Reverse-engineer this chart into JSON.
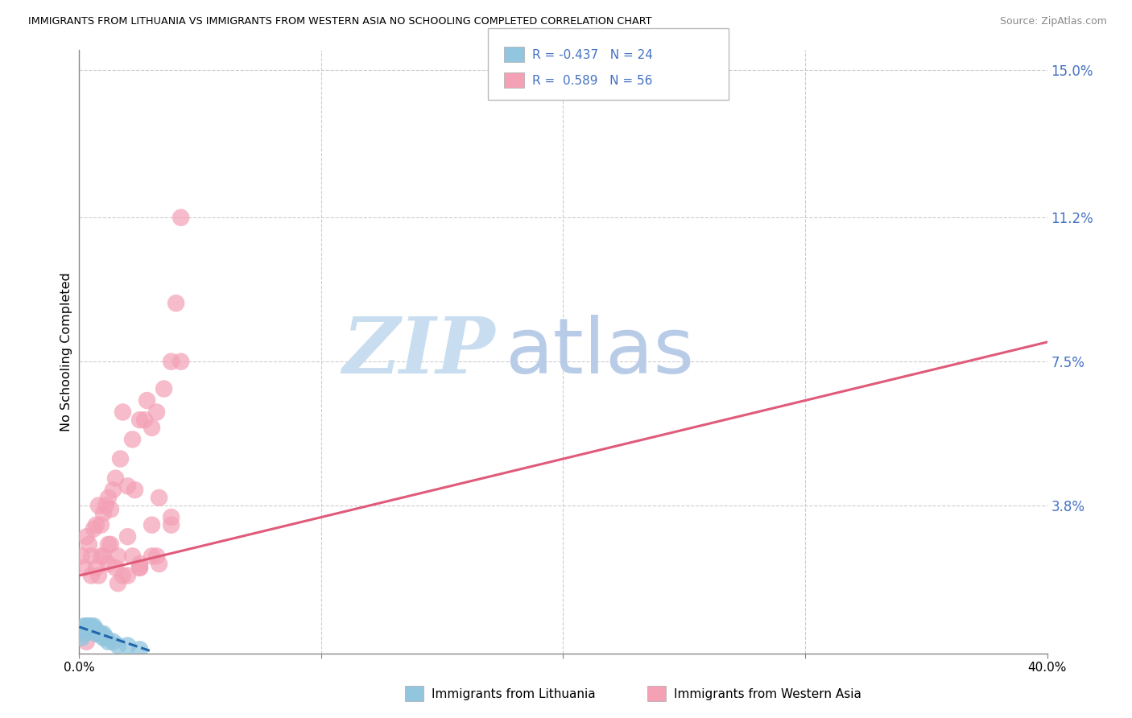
{
  "title": "IMMIGRANTS FROM LITHUANIA VS IMMIGRANTS FROM WESTERN ASIA NO SCHOOLING COMPLETED CORRELATION CHART",
  "source": "Source: ZipAtlas.com",
  "ylabel": "No Schooling Completed",
  "xlim": [
    0.0,
    0.4
  ],
  "ylim": [
    0.0,
    0.155
  ],
  "xtick_values": [
    0.0,
    0.1,
    0.2,
    0.3,
    0.4
  ],
  "xtick_labels": [
    "0.0%",
    "",
    "",
    "",
    "40.0%"
  ],
  "ytick_right_values": [
    0.038,
    0.075,
    0.112,
    0.15
  ],
  "ytick_right_labels": [
    "3.8%",
    "7.5%",
    "11.2%",
    "15.0%"
  ],
  "color_blue": "#92c5de",
  "color_pink": "#f4a0b5",
  "color_blue_line": "#2166ac",
  "color_pink_line": "#e05a7a",
  "watermark_zip_color": "#c8ddf0",
  "watermark_atlas_color": "#b8cce8",
  "footer_label1": "Immigrants from Lithuania",
  "footer_label2": "Immigrants from Western Asia",
  "legend_r1": "-0.437",
  "legend_n1": "24",
  "legend_r2": "0.589",
  "legend_n2": "56",
  "blue_x": [
    0.001,
    0.001,
    0.002,
    0.002,
    0.003,
    0.003,
    0.004,
    0.004,
    0.005,
    0.005,
    0.006,
    0.006,
    0.007,
    0.007,
    0.008,
    0.009,
    0.01,
    0.01,
    0.011,
    0.012,
    0.014,
    0.016,
    0.02,
    0.025
  ],
  "blue_y": [
    0.004,
    0.006,
    0.005,
    0.007,
    0.006,
    0.007,
    0.006,
    0.007,
    0.006,
    0.007,
    0.006,
    0.007,
    0.005,
    0.006,
    0.005,
    0.005,
    0.005,
    0.004,
    0.004,
    0.003,
    0.003,
    0.002,
    0.002,
    0.001
  ],
  "pink_x": [
    0.001,
    0.002,
    0.003,
    0.004,
    0.005,
    0.006,
    0.007,
    0.008,
    0.009,
    0.01,
    0.011,
    0.012,
    0.013,
    0.014,
    0.015,
    0.017,
    0.018,
    0.02,
    0.022,
    0.023,
    0.025,
    0.027,
    0.028,
    0.03,
    0.032,
    0.033,
    0.035,
    0.038,
    0.04,
    0.042,
    0.003,
    0.005,
    0.007,
    0.009,
    0.012,
    0.015,
    0.018,
    0.022,
    0.025,
    0.03,
    0.033,
    0.038,
    0.01,
    0.013,
    0.016,
    0.02,
    0.025,
    0.03,
    0.008,
    0.012,
    0.016,
    0.02,
    0.025,
    0.032,
    0.038,
    0.042
  ],
  "pink_y": [
    0.025,
    0.022,
    0.03,
    0.028,
    0.025,
    0.032,
    0.033,
    0.038,
    0.033,
    0.036,
    0.038,
    0.04,
    0.037,
    0.042,
    0.045,
    0.05,
    0.062,
    0.043,
    0.055,
    0.042,
    0.06,
    0.06,
    0.065,
    0.058,
    0.062,
    0.04,
    0.068,
    0.075,
    0.09,
    0.075,
    0.003,
    0.02,
    0.022,
    0.025,
    0.028,
    0.022,
    0.02,
    0.025,
    0.023,
    0.033,
    0.023,
    0.035,
    0.025,
    0.028,
    0.025,
    0.03,
    0.022,
    0.025,
    0.02,
    0.023,
    0.018,
    0.02,
    0.022,
    0.025,
    0.033,
    0.112
  ],
  "pink_line_x0": 0.0,
  "pink_line_y0": 0.02,
  "pink_line_x1": 0.4,
  "pink_line_y1": 0.08,
  "blue_line_x0": 0.0,
  "blue_line_y0": 0.0068,
  "blue_line_x1": 0.03,
  "blue_line_y1": 0.0005
}
